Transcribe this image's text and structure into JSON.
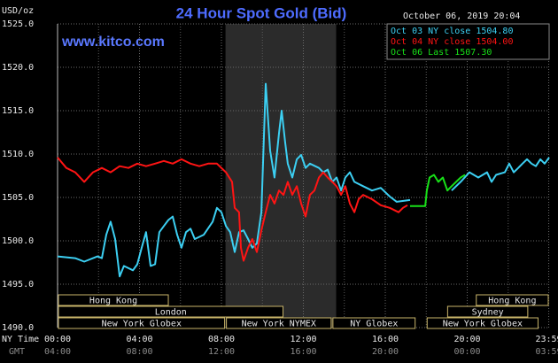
{
  "chart_data": {
    "type": "line",
    "title": "24 Hour Spot Gold (Bid)",
    "date": "October 06, 2019 20:04",
    "site": "www.kitco.com",
    "ylabel": "USD/oz",
    "xlabel": "NY Time",
    "x2label": "GMT",
    "ylim": [
      1490,
      1525
    ],
    "yticks": [
      {
        "value": 1490,
        "label": "1490.0"
      },
      {
        "value": 1495,
        "label": "1495.0"
      },
      {
        "value": 1500,
        "label": "1500.0"
      },
      {
        "value": 1505,
        "label": "1505.0"
      },
      {
        "value": 1510,
        "label": "1510.0"
      },
      {
        "value": 1515,
        "label": "1515.0"
      },
      {
        "value": 1520,
        "label": "1520.0"
      },
      {
        "value": 1525,
        "label": "1525.0"
      }
    ],
    "xlim": [
      0,
      24
    ],
    "xticks": [
      {
        "value": 0,
        "label": "00:00"
      },
      {
        "value": 4,
        "label": "04:00"
      },
      {
        "value": 8,
        "label": "08:00"
      },
      {
        "value": 12,
        "label": "12:00"
      },
      {
        "value": 16,
        "label": "16:00"
      },
      {
        "value": 20,
        "label": "20:00"
      },
      {
        "value": 23.98,
        "label": "23:59"
      }
    ],
    "x2ticks": [
      {
        "value": 0,
        "label": "04:00"
      },
      {
        "value": 4,
        "label": "08:00"
      },
      {
        "value": 8,
        "label": "12:00"
      },
      {
        "value": 12,
        "label": "16:00"
      },
      {
        "value": 16,
        "label": "20:00"
      },
      {
        "value": 20,
        "label": "00:00"
      },
      {
        "value": 23.98,
        "label": "03:59"
      }
    ],
    "xgrid": [
      2,
      6,
      10,
      14,
      18,
      22
    ],
    "grid": true,
    "highlight": [
      8.2,
      13.6
    ],
    "series": [
      {
        "name": "Oct 03 NY close 1504.80",
        "color": "#3ccff2",
        "x": [
          0,
          0.86,
          1.3,
          1.95,
          2.16,
          2.38,
          2.59,
          2.81,
          3.03,
          3.24,
          3.68,
          3.89,
          4.11,
          4.32,
          4.54,
          4.76,
          4.97,
          5.19,
          5.41,
          5.62,
          5.84,
          6.05,
          6.27,
          6.49,
          6.7,
          7.14,
          7.57,
          7.78,
          8.0,
          8.22,
          8.43,
          8.65,
          8.86,
          9.08,
          9.3,
          9.51,
          9.73,
          9.95,
          10.16,
          10.38,
          10.59,
          10.81,
          10.94,
          11.11,
          11.24,
          11.46,
          11.68,
          11.89,
          12.11,
          12.32,
          12.76,
          12.97,
          13.19,
          13.41,
          13.62,
          13.84,
          14.05,
          14.27,
          14.49,
          14.92,
          15.35,
          15.78,
          16.22,
          16.56,
          17.21,
          null,
          19.24,
          19.68,
          20.11,
          20.54,
          20.97,
          21.19,
          21.41,
          21.84,
          22.05,
          22.27,
          22.49,
          22.7,
          22.92,
          23.14,
          23.35,
          23.57,
          23.78,
          24.0
        ],
        "values": [
          1498.2,
          1498.0,
          1497.6,
          1498.2,
          1498.0,
          1500.7,
          1502.2,
          1500.2,
          1495.9,
          1497.1,
          1496.6,
          1497.3,
          1499.2,
          1501.0,
          1497.1,
          1497.3,
          1501.0,
          1501.7,
          1502.4,
          1502.8,
          1500.7,
          1499.2,
          1501.0,
          1501.4,
          1500.2,
          1500.7,
          1502.2,
          1503.8,
          1503.3,
          1501.7,
          1501.0,
          1498.7,
          1501.0,
          1501.2,
          1500.2,
          1499.2,
          1499.7,
          1503.3,
          1518.1,
          1510.4,
          1507.3,
          1512.4,
          1515.0,
          1511.4,
          1508.9,
          1507.3,
          1509.4,
          1509.9,
          1508.4,
          1508.9,
          1508.4,
          1507.9,
          1508.2,
          1506.8,
          1507.3,
          1505.8,
          1507.3,
          1507.9,
          1506.8,
          1506.3,
          1505.8,
          1506.1,
          1505.1,
          1504.5,
          1504.7,
          null,
          1505.8,
          1506.8,
          1507.9,
          1507.3,
          1507.9,
          1506.8,
          1507.6,
          1507.9,
          1508.9,
          1507.9,
          1508.4,
          1508.9,
          1509.4,
          1508.9,
          1508.6,
          1509.4,
          1508.9,
          1509.6
        ]
      },
      {
        "name": "Oct 04 NY close 1504.00",
        "color": "#ff1414",
        "x": [
          0,
          0.43,
          0.86,
          1.3,
          1.73,
          2.16,
          2.59,
          3.03,
          3.46,
          3.89,
          4.32,
          4.76,
          5.19,
          5.62,
          6.05,
          6.49,
          6.92,
          7.35,
          7.78,
          8.22,
          8.52,
          8.65,
          8.86,
          8.95,
          9.08,
          9.3,
          9.51,
          9.73,
          9.95,
          10.16,
          10.38,
          10.59,
          10.81,
          11.03,
          11.24,
          11.46,
          11.68,
          11.89,
          12.11,
          12.32,
          12.54,
          12.76,
          12.97,
          13.19,
          13.41,
          13.62,
          13.84,
          14.05,
          14.27,
          14.49,
          14.7,
          14.92,
          15.35,
          15.78,
          16.22,
          16.65,
          16.86,
          17.08
        ],
        "values": [
          1509.6,
          1508.4,
          1507.9,
          1506.8,
          1507.9,
          1508.4,
          1507.9,
          1508.6,
          1508.4,
          1508.9,
          1508.6,
          1508.9,
          1509.2,
          1508.9,
          1509.4,
          1508.9,
          1508.6,
          1508.9,
          1508.9,
          1507.9,
          1506.8,
          1503.8,
          1503.3,
          1499.2,
          1497.7,
          1499.2,
          1500.2,
          1498.7,
          1501.2,
          1503.3,
          1505.3,
          1504.3,
          1505.8,
          1505.3,
          1506.8,
          1505.3,
          1506.3,
          1504.3,
          1502.8,
          1505.3,
          1505.8,
          1507.3,
          1507.9,
          1507.3,
          1506.8,
          1506.3,
          1505.3,
          1506.3,
          1504.3,
          1503.3,
          1504.8,
          1505.3,
          1504.8,
          1504.1,
          1503.8,
          1503.3,
          1503.8,
          1504.1
        ]
      },
      {
        "name": "Oct 06 Last 1507.30",
        "color": "#18e018",
        "x": [
          17.21,
          17.95,
          18.03,
          18.16,
          18.38,
          18.59,
          18.81,
          19.03,
          19.24,
          19.46,
          19.68,
          19.89
        ],
        "values": [
          1504.0,
          1504.0,
          1505.8,
          1507.3,
          1507.6,
          1506.8,
          1507.3,
          1505.8,
          1506.3,
          1506.8,
          1507.3,
          1507.6
        ]
      }
    ],
    "sessions": [
      [
        {
          "label": "Hong Kong",
          "start": 0,
          "end": 5.45
        },
        {
          "label": "Hong Kong",
          "start": 20.4,
          "end": 24
        }
      ],
      [
        {
          "label": "London",
          "start": 0,
          "end": 11.05
        },
        {
          "label": "Sydney",
          "start": 19.0,
          "end": 23.0
        }
      ],
      [
        {
          "label": "New York Globex",
          "start": 0,
          "end": 8.2
        },
        {
          "label": "New York NYMEX",
          "start": 8.2,
          "end": 13.4
        },
        {
          "label": "NY Globex",
          "start": 13.4,
          "end": 17.5
        },
        {
          "label": "New York Globex",
          "start": 18.0,
          "end": 23.5
        }
      ]
    ]
  }
}
